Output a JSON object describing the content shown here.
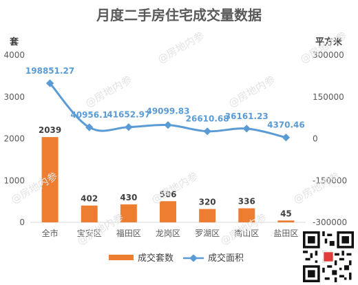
{
  "title": "月度二手房住宅成交量数据",
  "left_unit": "套",
  "right_unit": "平方米",
  "watermark": "@房地内参",
  "legend": {
    "bar": "成交套数",
    "line": "成交面积"
  },
  "colors": {
    "bar": "#ED7D31",
    "line": "#5B9BD5",
    "bar_label": "#404040",
    "line_label": "#5B9BD5",
    "axis_text": "#595959",
    "grid": "#d9d9d9"
  },
  "chart_data": {
    "type": "bar",
    "categories": [
      "全市",
      "宝安区",
      "福田区",
      "龙岗区",
      "罗湖区",
      "南山区",
      "盐田区"
    ],
    "series": [
      {
        "name": "成交套数",
        "type": "bar",
        "axis": "left",
        "values": [
          2039,
          402,
          430,
          506,
          320,
          336,
          45
        ],
        "labels": [
          "2039",
          "402",
          "430",
          "506",
          "320",
          "336",
          "45"
        ]
      },
      {
        "name": "成交面积",
        "type": "line",
        "axis": "right",
        "values": [
          198851.27,
          40956.1,
          41652.97,
          49099.83,
          26610.68,
          36161.23,
          4370.46
        ],
        "labels": [
          "198851.27",
          "40956.1",
          "41652.97",
          "49099.83",
          "26610.68",
          "36161.23",
          "4370.46"
        ]
      }
    ],
    "ylim_left": [
      0,
      4000
    ],
    "yticks_left": [
      "0",
      "1000",
      "2000",
      "3000",
      "4000"
    ],
    "ylim_right": [
      -300000,
      300000
    ],
    "yticks_right": [
      "-300000",
      "-150000",
      "0",
      "150000",
      "300000"
    ],
    "grid": false,
    "legend_position": "bottom"
  }
}
